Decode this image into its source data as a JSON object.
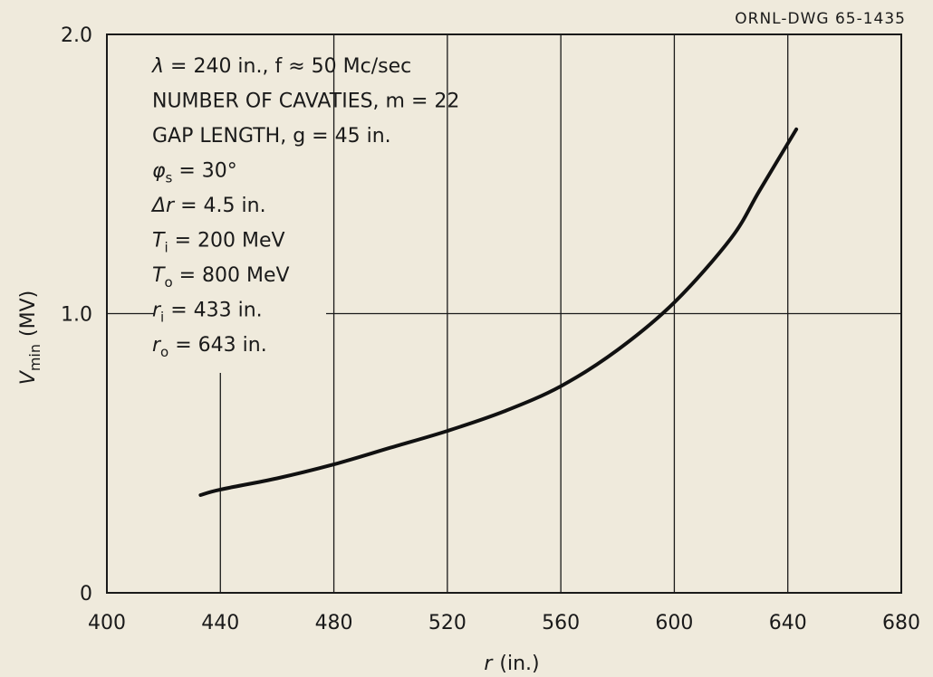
{
  "drawing_id": "ORNL-DWG 65-1435",
  "chart_data": {
    "type": "line",
    "title": "",
    "xlabel": "r",
    "xlabel_unit": "(in.)",
    "ylabel": "V",
    "ylabel_sub": "min",
    "ylabel_unit": "(MV)",
    "xlim": [
      400,
      680
    ],
    "ylim": [
      0,
      2.0
    ],
    "x_ticks": [
      400,
      440,
      480,
      520,
      560,
      600,
      640,
      680
    ],
    "y_ticks": [
      0,
      1.0,
      2.0
    ],
    "y_tick_labels": [
      "0",
      "1.0",
      "2.0"
    ],
    "grid": "vertical lines at each x tick; horizontal line at V = 1.0",
    "series": [
      {
        "x": [
          433,
          440,
          460,
          480,
          500,
          520,
          540,
          560,
          580,
          600,
          620,
          630,
          643
        ],
        "y": [
          0.35,
          0.37,
          0.41,
          0.46,
          0.52,
          0.58,
          0.65,
          0.74,
          0.87,
          1.04,
          1.27,
          1.44,
          1.66
        ],
        "color": "#111111"
      }
    ],
    "annotations": [
      {
        "sym": "λ",
        "rest": " = 240 in., f ≈ 50 Mc/sec"
      },
      {
        "sym": "",
        "rest": "NUMBER OF CAVATIES, m = 22"
      },
      {
        "sym": "",
        "rest": "GAP LENGTH, g = 45 in."
      },
      {
        "sym": "φ",
        "sub": "s",
        "rest": " = 30°"
      },
      {
        "sym": "Δr",
        "rest": " = 4.5 in."
      },
      {
        "sym": "T",
        "sub": "i",
        "rest": " = 200 MeV"
      },
      {
        "sym": "T",
        "sub": "o",
        "rest": " = 800 MeV"
      },
      {
        "sym": "r",
        "sub": "i",
        "rest": " = 433 in."
      },
      {
        "sym": "r",
        "sub": "o",
        "rest": " = 643 in."
      }
    ]
  }
}
